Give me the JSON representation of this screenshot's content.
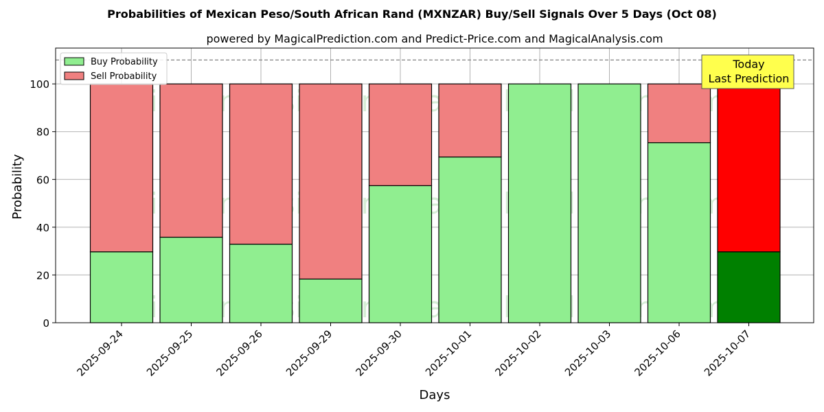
{
  "chart_data": {
    "type": "bar",
    "stacked": true,
    "title": "Probabilities of Mexican Peso/South African Rand (MXNZAR) Buy/Sell Signals Over 5 Days (Oct 08)",
    "subtitle": "powered by MagicalPrediction.com and Predict-Price.com and MagicalAnalysis.com",
    "xlabel": "Days",
    "ylabel": "Probability",
    "ylim": [
      0,
      115
    ],
    "yticks": [
      0,
      20,
      40,
      60,
      80,
      100
    ],
    "grid": true,
    "legend_position": "top-left",
    "reference_line": 110,
    "categories": [
      "2025-09-24",
      "2025-09-25",
      "2025-09-26",
      "2025-09-29",
      "2025-09-30",
      "2025-10-01",
      "2025-10-02",
      "2025-10-03",
      "2025-10-06",
      "2025-10-07"
    ],
    "series": [
      {
        "name": "Buy Probability",
        "values": [
          29.7,
          35.8,
          32.9,
          18.3,
          57.4,
          69.4,
          100,
          100,
          75.4,
          29.7
        ],
        "color": "#90ee90",
        "highlight_color": "#008000"
      },
      {
        "name": "Sell Probability",
        "values": [
          70.3,
          64.2,
          67.1,
          81.7,
          42.6,
          30.6,
          0,
          0,
          24.6,
          70.3
        ],
        "color": "#f08080",
        "highlight_color": "#ff0000"
      }
    ],
    "highlight_index": 9,
    "annotation": {
      "line1": "Today",
      "line2": "Last Prediction",
      "color": "#ffff4d"
    },
    "watermarks": [
      "MagicalAnalysis.com",
      "MagicalPrediction.com"
    ]
  }
}
